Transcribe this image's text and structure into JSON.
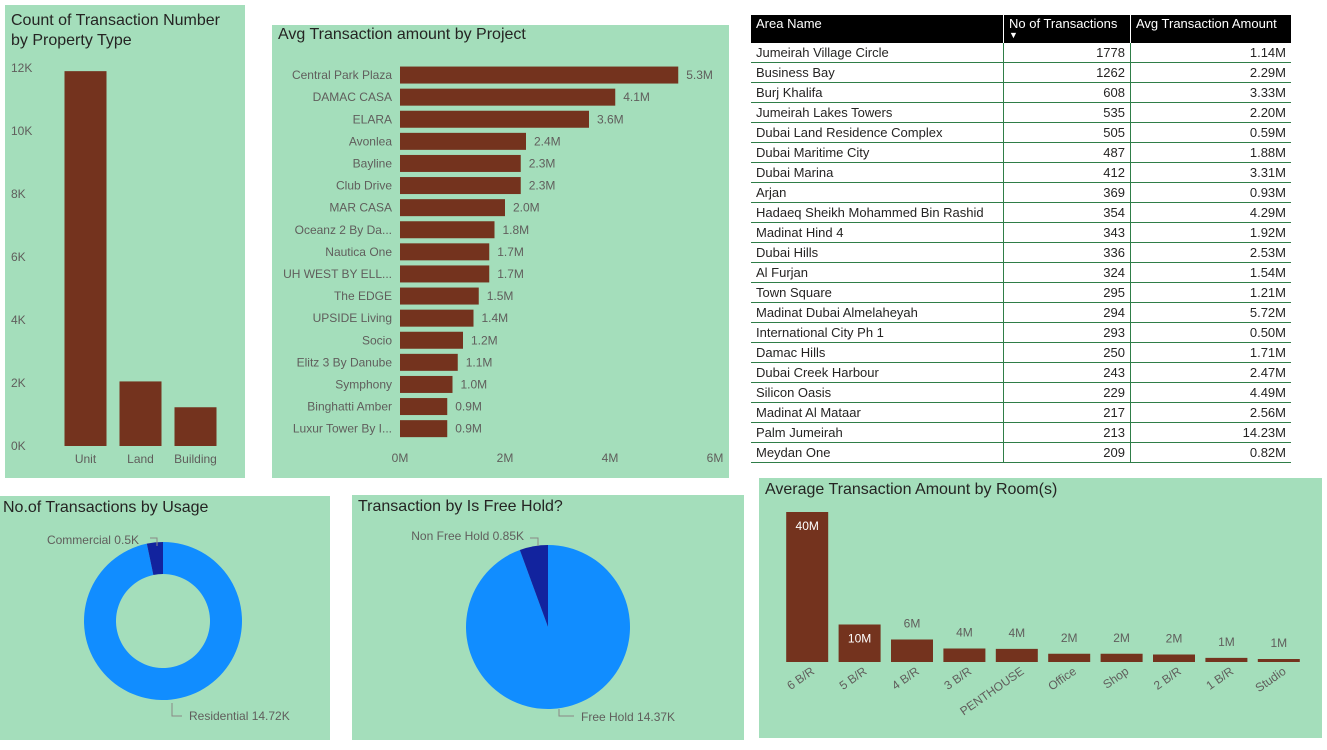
{
  "colors": {
    "panel": "#a4debb",
    "bar": "#74331e",
    "pie_main": "#118dff",
    "pie_minor": "#12239e",
    "table_header": "#000000",
    "table_grid": "#2f7d48"
  },
  "property_type_panel": {
    "title": "Count of Transaction Number\nby Property Type"
  },
  "project_panel": {
    "title": "Avg Transaction amount by Project"
  },
  "usage_panel": {
    "title": "No.of Transactions by Usage"
  },
  "freehold_panel": {
    "title": "Transaction by Is Free Hold?"
  },
  "rooms_panel": {
    "title": "Average Transaction Amount by Room(s)"
  },
  "area_table": {
    "headers": [
      "Area Name",
      "No of Transactions",
      "Avg Transaction Amount"
    ],
    "sort_indicator": "▼",
    "rows": [
      [
        "Jumeirah Village Circle",
        "1778",
        "1.14M"
      ],
      [
        "Business Bay",
        "1262",
        "2.29M"
      ],
      [
        "Burj Khalifa",
        "608",
        "3.33M"
      ],
      [
        "Jumeirah Lakes Towers",
        "535",
        "2.20M"
      ],
      [
        "Dubai Land Residence Complex",
        "505",
        "0.59M"
      ],
      [
        "Dubai Maritime City",
        "487",
        "1.88M"
      ],
      [
        "Dubai Marina",
        "412",
        "3.31M"
      ],
      [
        "Arjan",
        "369",
        "0.93M"
      ],
      [
        "Hadaeq Sheikh Mohammed Bin Rashid",
        "354",
        "4.29M"
      ],
      [
        "Madinat Hind 4",
        "343",
        "1.92M"
      ],
      [
        "Dubai Hills",
        "336",
        "2.53M"
      ],
      [
        "Al Furjan",
        "324",
        "1.54M"
      ],
      [
        "Town Square",
        "295",
        "1.21M"
      ],
      [
        "Madinat Dubai Almelaheyah",
        "294",
        "5.72M"
      ],
      [
        "International City Ph 1",
        "293",
        "0.50M"
      ],
      [
        "Damac Hills",
        "250",
        "1.71M"
      ],
      [
        "Dubai Creek Harbour",
        "243",
        "2.47M"
      ],
      [
        "Silicon Oasis",
        "229",
        "4.49M"
      ],
      [
        "Madinat Al Mataar",
        "217",
        "2.56M"
      ],
      [
        "Palm Jumeirah",
        "213",
        "14.23M"
      ],
      [
        "Meydan One",
        "209",
        "0.82M"
      ]
    ]
  },
  "chart_data": [
    {
      "id": "property_type",
      "type": "bar",
      "title": "Count of Transaction Number by Property Type",
      "categories": [
        "Unit",
        "Land",
        "Building"
      ],
      "values": [
        11900,
        2050,
        1230
      ],
      "ylim": [
        0,
        12000
      ],
      "yticks": [
        "0K",
        "2K",
        "4K",
        "6K",
        "8K",
        "10K",
        "12K"
      ],
      "ytick_values": [
        0,
        2000,
        4000,
        6000,
        8000,
        10000,
        12000
      ],
      "grid": false
    },
    {
      "id": "project",
      "type": "bar",
      "orientation": "horizontal",
      "title": "Avg Transaction amount by Project",
      "categories": [
        "Central Park Plaza",
        "DAMAC CASA",
        "ELARA",
        "Avonlea",
        "Bayline",
        "Club Drive",
        "MAR CASA",
        "Oceanz 2 By Da...",
        "Nautica One",
        "UH WEST BY ELL...",
        "The EDGE",
        "UPSIDE Living",
        "Socio",
        "Elitz 3 By Danube",
        "Symphony",
        "Binghatti Amber",
        "Luxur Tower By I..."
      ],
      "values": [
        5.3,
        4.1,
        3.6,
        2.4,
        2.3,
        2.3,
        2.0,
        1.8,
        1.7,
        1.7,
        1.5,
        1.4,
        1.2,
        1.1,
        1.0,
        0.9,
        0.9
      ],
      "data_labels": [
        "5.3M",
        "4.1M",
        "3.6M",
        "2.4M",
        "2.3M",
        "2.3M",
        "2.0M",
        "1.8M",
        "1.7M",
        "1.7M",
        "1.5M",
        "1.4M",
        "1.2M",
        "1.1M",
        "1.0M",
        "0.9M",
        "0.9M"
      ],
      "xlim": [
        0,
        6
      ],
      "xticks": [
        "0M",
        "2M",
        "4M",
        "6M"
      ],
      "xtick_values": [
        0,
        2,
        4,
        6
      ]
    },
    {
      "id": "usage",
      "type": "pie",
      "variant": "donut",
      "title": "No.of Transactions by Usage",
      "categories": [
        "Residential",
        "Commercial"
      ],
      "values": [
        14.72,
        0.5
      ],
      "labels": [
        "Residential 14.72K",
        "Commercial 0.5K"
      ]
    },
    {
      "id": "freehold",
      "type": "pie",
      "title": "Transaction by Is Free Hold?",
      "categories": [
        "Free Hold",
        "Non Free Hold"
      ],
      "values": [
        14.37,
        0.85
      ],
      "labels": [
        "Free Hold 14.37K",
        "Non Free Hold 0.85K"
      ]
    },
    {
      "id": "rooms",
      "type": "bar",
      "title": "Average Transaction Amount by Room(s)",
      "categories": [
        "6 B/R",
        "5 B/R",
        "4 B/R",
        "3 B/R",
        "PENTHOUSE",
        "Office",
        "Shop",
        "2 B/R",
        "1 B/R",
        "Studio"
      ],
      "values": [
        40,
        10,
        6,
        3.6,
        3.5,
        2.2,
        2.2,
        2.0,
        1.1,
        0.8
      ],
      "data_labels": [
        "40M",
        "10M",
        "6M",
        "4M",
        "4M",
        "2M",
        "2M",
        "2M",
        "1M",
        "1M"
      ],
      "ylim": [
        0,
        40
      ]
    }
  ]
}
